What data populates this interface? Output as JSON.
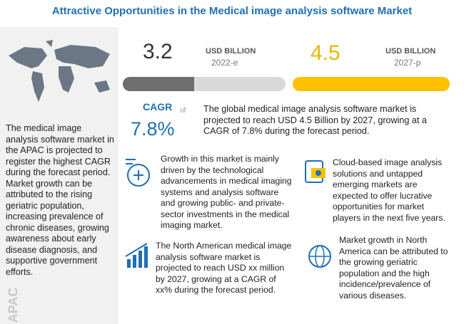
{
  "title": "Attractive Opportunities in the Medical image analysis software Market",
  "apac": {
    "text": "The medical image analysis software market in the APAC is projected to register the highest CAGR during the forecast period. Market growth can be attributed to the rising geriatric population, increasing prevalence of chronic diseases, growing awareness about early disease diagnosis, and supportive government efforts.",
    "region": "APAC"
  },
  "market_2022": {
    "value": 3.2,
    "unit": "USD BILLION",
    "year": "2022-e"
  },
  "market_2027": {
    "value": 4.5,
    "unit": "USD BILLION",
    "year": "2027-p"
  },
  "cagr": {
    "label": "CAGR",
    "of": "of",
    "value": "7.8%"
  },
  "summary": "The global medical image analysis software market is projected to reach USD 4.5 Billion by 2027, growing at a CAGR of 7.8% during the forecast period.",
  "insights": [
    "Growth in this market is mainly driven by the technological advancements in medical imaging systems and analysis software and growing public- and private-sector investments in the medical imaging market.",
    "Cloud-based image analysis solutions and untapped emerging markets are expected to offer lucrative opportunities for market players in the next five years.",
    "The North American medical image analysis software market is projected to reach USD xx million by 2027, growing at a CAGR of xx% during the forecast period.",
    "Market growth in North America can be attributed to the growing geriatric population and the high incidence/prevalence of various diseases."
  ]
}
